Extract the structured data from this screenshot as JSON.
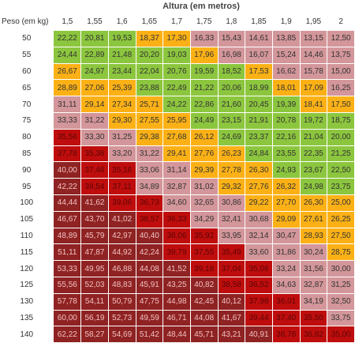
{
  "title": "Altura (em metros)",
  "corner_label": "Peso (em kg)",
  "colors": {
    "green": "#8cc63e",
    "yellow": "#fbb116",
    "pink": "#d3969a",
    "red": "#bf0d0d",
    "darkred": "#8f2222"
  },
  "heights": [
    "1,5",
    "1,55",
    "1,6",
    "1,65",
    "1,7",
    "1,75",
    "1,8",
    "1,85",
    "1,9",
    "1,95",
    "2"
  ],
  "rows": [
    {
      "weight": "50",
      "values": [
        "22,22",
        "20,81",
        "19,53",
        "18,37",
        "17,30",
        "16,33",
        "15,43",
        "14,61",
        "13,85",
        "13,15",
        "12,50"
      ],
      "colors": [
        "green",
        "green",
        "green",
        "yellow",
        "yellow",
        "pink",
        "pink",
        "pink",
        "pink",
        "pink",
        "pink"
      ]
    },
    {
      "weight": "55",
      "values": [
        "24,44",
        "22,89",
        "21,48",
        "20,20",
        "19,03",
        "17,96",
        "16,98",
        "16,07",
        "15,24",
        "14,46",
        "13,75"
      ],
      "colors": [
        "green",
        "green",
        "green",
        "green",
        "green",
        "yellow",
        "pink",
        "pink",
        "pink",
        "pink",
        "pink"
      ]
    },
    {
      "weight": "60",
      "values": [
        "26,67",
        "24,97",
        "23,44",
        "22,04",
        "20,76",
        "19,59",
        "18,52",
        "17,53",
        "16,62",
        "15,78",
        "15,00"
      ],
      "colors": [
        "yellow",
        "green",
        "green",
        "green",
        "green",
        "green",
        "green",
        "yellow",
        "pink",
        "pink",
        "pink"
      ]
    },
    {
      "weight": "65",
      "values": [
        "28,89",
        "27,06",
        "25,39",
        "23,88",
        "22,49",
        "21,22",
        "20,06",
        "18,99",
        "18,01",
        "17,09",
        "16,25"
      ],
      "colors": [
        "yellow",
        "yellow",
        "yellow",
        "green",
        "green",
        "green",
        "green",
        "green",
        "yellow",
        "yellow",
        "pink"
      ]
    },
    {
      "weight": "70",
      "values": [
        "31,11",
        "29,14",
        "27,34",
        "25,71",
        "24,22",
        "22,86",
        "21,60",
        "20,45",
        "19,39",
        "18,41",
        "17,50"
      ],
      "colors": [
        "pink",
        "yellow",
        "yellow",
        "yellow",
        "green",
        "green",
        "green",
        "green",
        "green",
        "yellow",
        "yellow"
      ]
    },
    {
      "weight": "75",
      "values": [
        "33,33",
        "31,22",
        "29,30",
        "27,55",
        "25,95",
        "24,49",
        "23,15",
        "21,91",
        "20,78",
        "19,72",
        "18,75"
      ],
      "colors": [
        "pink",
        "pink",
        "yellow",
        "yellow",
        "yellow",
        "green",
        "green",
        "green",
        "green",
        "green",
        "green"
      ]
    },
    {
      "weight": "80",
      "values": [
        "35,56",
        "33,30",
        "31,25",
        "29,38",
        "27,68",
        "26,12",
        "24,69",
        "23,37",
        "22,16",
        "21,04",
        "20,00"
      ],
      "colors": [
        "red",
        "pink",
        "pink",
        "yellow",
        "yellow",
        "yellow",
        "green",
        "green",
        "green",
        "green",
        "green"
      ]
    },
    {
      "weight": "85",
      "values": [
        "37,78",
        "35,38",
        "33,20",
        "31,22",
        "29,41",
        "27,76",
        "26,23",
        "24,84",
        "23,55",
        "22,35",
        "21,25"
      ],
      "colors": [
        "red",
        "red",
        "pink",
        "pink",
        "yellow",
        "yellow",
        "yellow",
        "green",
        "green",
        "green",
        "green"
      ]
    },
    {
      "weight": "90",
      "values": [
        "40,00",
        "37,46",
        "35,16",
        "33,06",
        "31,14",
        "29,39",
        "27,78",
        "26,30",
        "24,93",
        "23,67",
        "22,50"
      ],
      "colors": [
        "darkred",
        "red",
        "red",
        "pink",
        "pink",
        "yellow",
        "yellow",
        "yellow",
        "green",
        "green",
        "green"
      ]
    },
    {
      "weight": "95",
      "values": [
        "42,22",
        "39,54",
        "37,11",
        "34,89",
        "32,87",
        "31,02",
        "29,32",
        "27,76",
        "26,32",
        "24,98",
        "23,75"
      ],
      "colors": [
        "darkred",
        "red",
        "red",
        "pink",
        "pink",
        "pink",
        "yellow",
        "yellow",
        "yellow",
        "green",
        "green"
      ]
    },
    {
      "weight": "100",
      "values": [
        "44,44",
        "41,62",
        "39,06",
        "36,73",
        "34,60",
        "32,65",
        "30,86",
        "29,22",
        "27,70",
        "26,30",
        "25,00"
      ],
      "colors": [
        "darkred",
        "darkred",
        "red",
        "red",
        "pink",
        "pink",
        "pink",
        "yellow",
        "yellow",
        "yellow",
        "yellow"
      ]
    },
    {
      "weight": "105",
      "values": [
        "46,67",
        "43,70",
        "41,02",
        "38,57",
        "36,33",
        "34,29",
        "32,41",
        "30,68",
        "29,09",
        "27,61",
        "26,25"
      ],
      "colors": [
        "darkred",
        "darkred",
        "darkred",
        "red",
        "red",
        "pink",
        "pink",
        "pink",
        "yellow",
        "yellow",
        "yellow"
      ]
    },
    {
      "weight": "110",
      "values": [
        "48,89",
        "45,79",
        "42,97",
        "40,40",
        "38,06",
        "35,92",
        "33,95",
        "32,14",
        "30,47",
        "28,93",
        "27,50"
      ],
      "colors": [
        "darkred",
        "darkred",
        "darkred",
        "darkred",
        "red",
        "red",
        "pink",
        "pink",
        "pink",
        "yellow",
        "yellow"
      ]
    },
    {
      "weight": "115",
      "values": [
        "51,11",
        "47,87",
        "44,92",
        "42,24",
        "39,79",
        "37,55",
        "35,49",
        "33,60",
        "31,86",
        "30,24",
        "28,75"
      ],
      "colors": [
        "darkred",
        "darkred",
        "darkred",
        "darkred",
        "red",
        "red",
        "red",
        "pink",
        "pink",
        "pink",
        "yellow"
      ]
    },
    {
      "weight": "120",
      "values": [
        "53,33",
        "49,95",
        "46,88",
        "44,08",
        "41,52",
        "39,18",
        "37,04",
        "35,06",
        "33,24",
        "31,56",
        "30,00"
      ],
      "colors": [
        "darkred",
        "darkred",
        "darkred",
        "darkred",
        "darkred",
        "red",
        "red",
        "red",
        "pink",
        "pink",
        "pink"
      ]
    },
    {
      "weight": "125",
      "values": [
        "55,56",
        "52,03",
        "48,83",
        "45,91",
        "43,25",
        "40,82",
        "38,58",
        "36,52",
        "34,63",
        "32,87",
        "31,25"
      ],
      "colors": [
        "darkred",
        "darkred",
        "darkred",
        "darkred",
        "darkred",
        "darkred",
        "red",
        "red",
        "pink",
        "pink",
        "pink"
      ]
    },
    {
      "weight": "130",
      "values": [
        "57,78",
        "54,11",
        "50,79",
        "47,75",
        "44,98",
        "42,45",
        "40,12",
        "37,98",
        "36,01",
        "34,19",
        "32,50"
      ],
      "colors": [
        "darkred",
        "darkred",
        "darkred",
        "darkred",
        "darkred",
        "darkred",
        "darkred",
        "red",
        "red",
        "pink",
        "pink"
      ]
    },
    {
      "weight": "135",
      "values": [
        "60,00",
        "56,19",
        "52,73",
        "49,59",
        "46,71",
        "44,08",
        "41,67",
        "39,44",
        "37,40",
        "35,50",
        "33,75"
      ],
      "colors": [
        "darkred",
        "darkred",
        "darkred",
        "darkred",
        "darkred",
        "darkred",
        "darkred",
        "red",
        "red",
        "red",
        "pink"
      ]
    },
    {
      "weight": "140",
      "values": [
        "62,22",
        "58,27",
        "54,69",
        "51,42",
        "48,44",
        "45,71",
        "43,21",
        "40,91",
        "38,78",
        "36,82",
        "35,00"
      ],
      "colors": [
        "darkred",
        "darkred",
        "darkred",
        "darkred",
        "darkred",
        "darkred",
        "darkred",
        "darkred",
        "red",
        "red",
        "red"
      ]
    }
  ]
}
